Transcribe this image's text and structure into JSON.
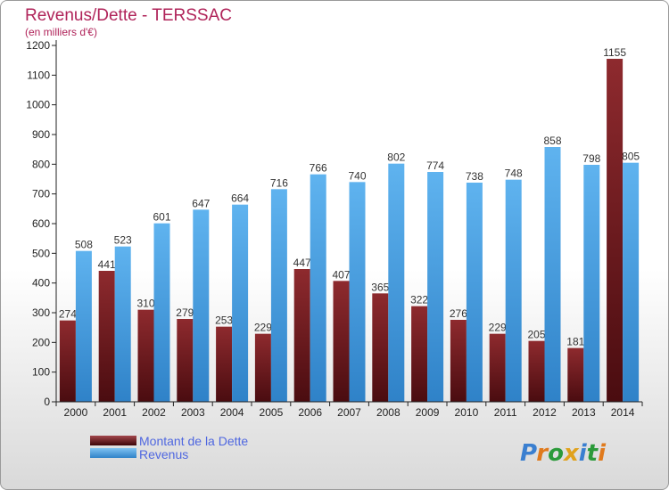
{
  "chart_data": {
    "type": "bar",
    "title": "Revenus/Dette - TERSSAC",
    "subtitle": "(en milliers d'€)",
    "categories": [
      "2000",
      "2001",
      "2002",
      "2003",
      "2004",
      "2005",
      "2006",
      "2007",
      "2008",
      "2009",
      "2010",
      "2011",
      "2012",
      "2013",
      "2014"
    ],
    "series": [
      {
        "name": "Montant de la Dette",
        "color": "#7a1f24",
        "values": [
          274,
          441,
          310,
          279,
          253,
          229,
          447,
          407,
          365,
          322,
          276,
          229,
          205,
          181,
          1155
        ]
      },
      {
        "name": "Revenus",
        "color": "#4aa3e6",
        "values": [
          508,
          523,
          601,
          647,
          664,
          716,
          766,
          740,
          802,
          774,
          738,
          748,
          858,
          798,
          805
        ]
      }
    ],
    "ylim": [
      0,
      1200
    ],
    "yticks": [
      0,
      100,
      200,
      300,
      400,
      500,
      600,
      700,
      800,
      900,
      1000,
      1100,
      1200
    ],
    "grid": false,
    "legend": "bottom-left"
  },
  "brand": "Proxiti"
}
